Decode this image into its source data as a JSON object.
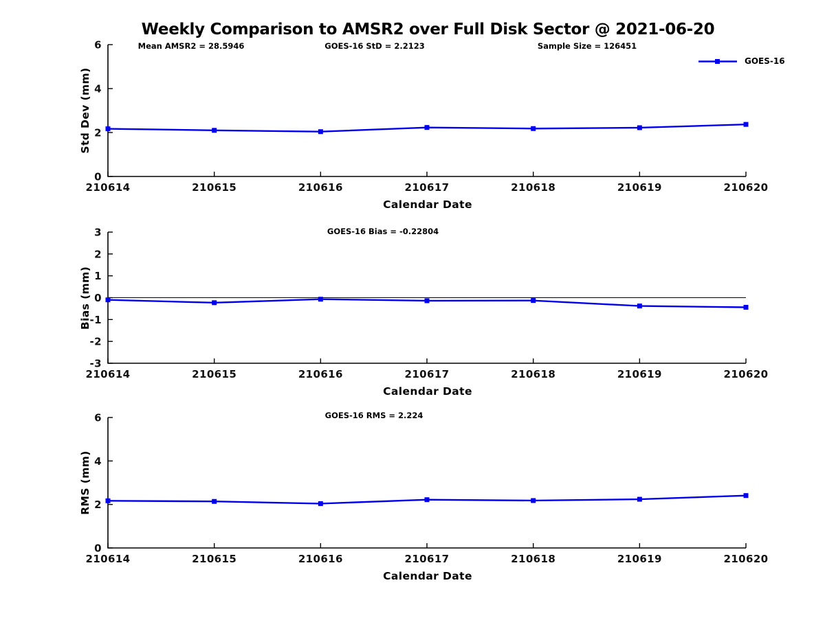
{
  "page_title": "Weekly Comparison to AMSR2 over Full Disk Sector @ 2021-06-20",
  "header_annotations": {
    "mean_amsr2": "Mean AMSR2 = 28.5946",
    "goes16_std": "GOES-16 StD = 2.2123",
    "sample_size": "Sample Size = 126451"
  },
  "legend": {
    "label": "GOES-16",
    "line_color": "#0000ee",
    "marker": "square"
  },
  "chart_data": [
    {
      "type": "line",
      "name": "std-dev",
      "title": "",
      "annotation": "",
      "xlabel": "Calendar Date",
      "ylabel": "Std Dev (mm)",
      "ylim": [
        0,
        6
      ],
      "yticks": [
        0,
        2,
        4,
        6
      ],
      "grid": false,
      "zero_line": false,
      "legend_position": "upper-right-outside",
      "categories": [
        "210614",
        "210615",
        "210616",
        "210617",
        "210618",
        "210619",
        "210620"
      ],
      "series": [
        {
          "name": "GOES-16",
          "color": "#0000ee",
          "marker": "square",
          "values": [
            2.17,
            2.1,
            2.04,
            2.23,
            2.18,
            2.22,
            2.37
          ]
        }
      ]
    },
    {
      "type": "line",
      "name": "bias",
      "title": "",
      "annotation": "GOES-16 Bias  = -0.22804",
      "xlabel": "Calendar Date",
      "ylabel": "Bias (mm)",
      "ylim": [
        -3,
        3
      ],
      "yticks": [
        -3,
        -2,
        -1,
        0,
        1,
        2,
        3
      ],
      "grid": false,
      "zero_line": true,
      "categories": [
        "210614",
        "210615",
        "210616",
        "210617",
        "210618",
        "210619",
        "210620"
      ],
      "series": [
        {
          "name": "GOES-16",
          "color": "#0000ee",
          "marker": "square",
          "values": [
            -0.1,
            -0.23,
            -0.07,
            -0.14,
            -0.13,
            -0.38,
            -0.44
          ]
        }
      ]
    },
    {
      "type": "line",
      "name": "rms",
      "title": "",
      "annotation": "GOES-16 RMS = 2.224",
      "xlabel": "Calendar Date",
      "ylabel": "RMS (mm)",
      "ylim": [
        0,
        6
      ],
      "yticks": [
        0,
        2,
        4,
        6
      ],
      "grid": false,
      "zero_line": false,
      "categories": [
        "210614",
        "210615",
        "210616",
        "210617",
        "210618",
        "210619",
        "210620"
      ],
      "series": [
        {
          "name": "GOES-16",
          "color": "#0000ee",
          "marker": "square",
          "values": [
            2.17,
            2.14,
            2.04,
            2.22,
            2.18,
            2.24,
            2.41
          ]
        }
      ]
    }
  ]
}
